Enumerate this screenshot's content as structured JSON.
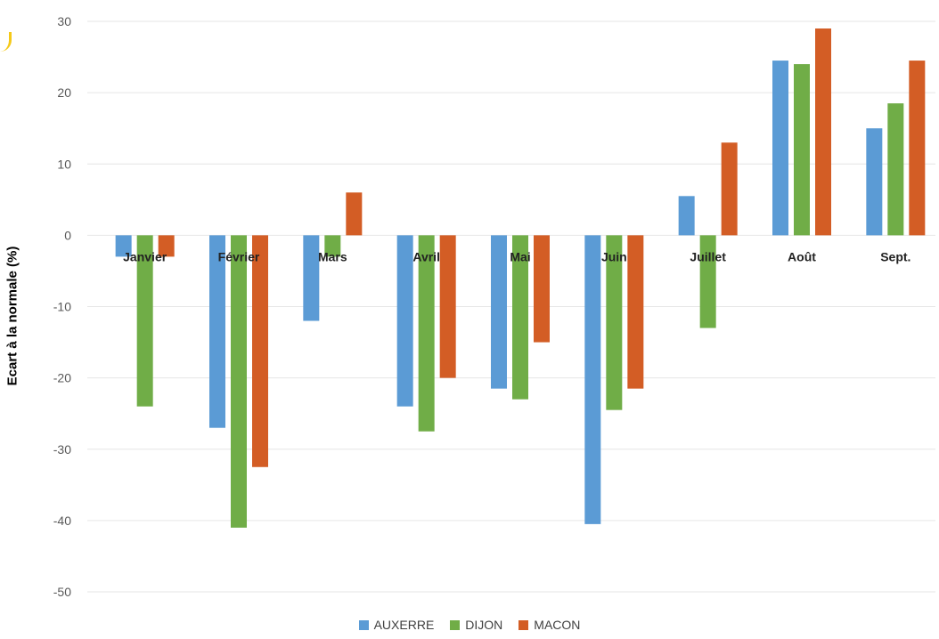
{
  "chart_data": {
    "type": "bar",
    "categories": [
      "Janvier",
      "Février",
      "Mars",
      "Avril",
      "Mai",
      "Juin",
      "Juillet",
      "Août",
      "Sept."
    ],
    "series": [
      {
        "name": "AUXERRE",
        "color": "#5b9bd5",
        "values": [
          -3,
          -27,
          -12,
          -24,
          -21.5,
          -40.5,
          5.5,
          24.5,
          15
        ]
      },
      {
        "name": "DIJON",
        "color": "#70ad47",
        "values": [
          -24,
          -41,
          -3,
          -27.5,
          -23,
          -24.5,
          -13,
          24,
          18.5
        ]
      },
      {
        "name": "MACON",
        "color": "#d35d25",
        "values": [
          -3,
          -32.5,
          6,
          -20,
          -15,
          -21.5,
          13,
          29,
          24.5
        ]
      }
    ],
    "ylabel": "Ecart à la normale (%)",
    "ylim": [
      -50,
      30
    ],
    "yticks": [
      "30",
      "20",
      "10",
      "0",
      "-10",
      "-20",
      "-30",
      "-40",
      "-50"
    ],
    "grid": true,
    "legend_position": "bottom"
  }
}
